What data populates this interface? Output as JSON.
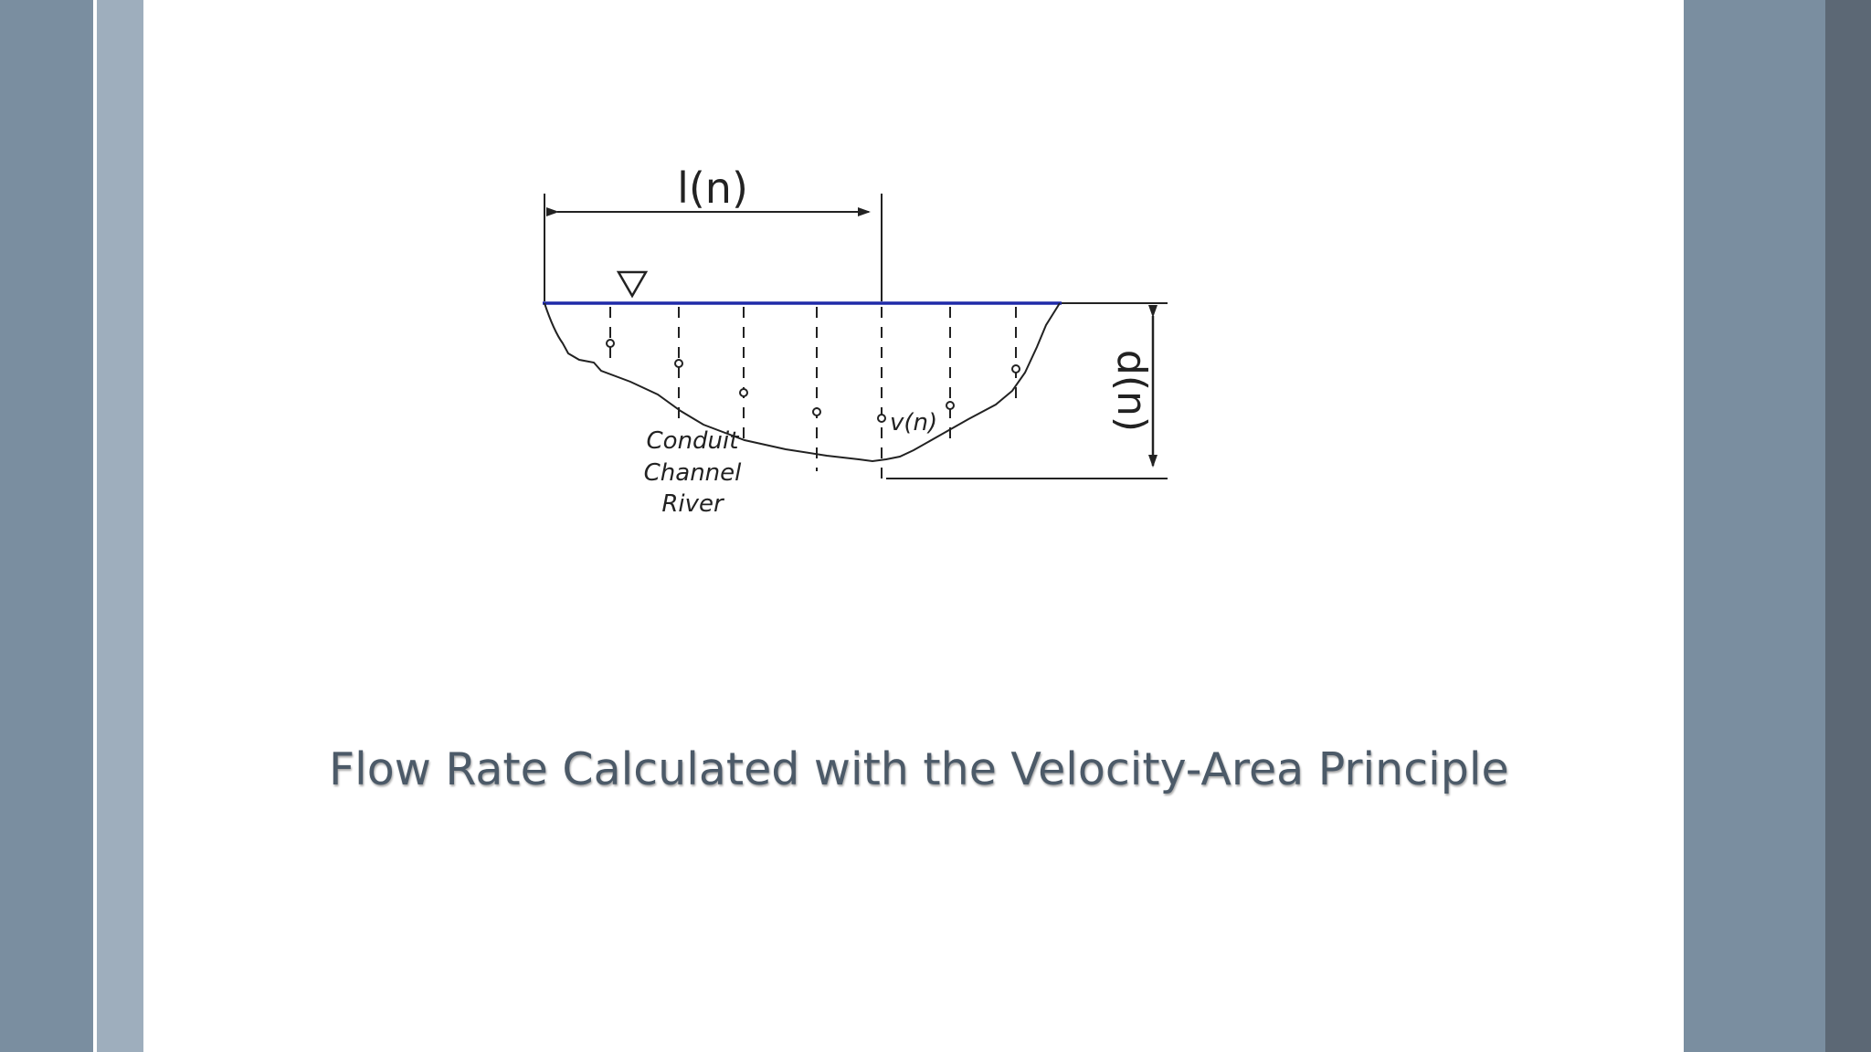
{
  "slide": {
    "caption": "Flow Rate Calculated with the Velocity-Area Principle"
  },
  "diagram": {
    "width_label": "l(n)",
    "depth_label": "d(n)",
    "velocity_label": "v(n)",
    "channel_labels": [
      "Conduit",
      "Channel",
      "River"
    ],
    "water_line_color": "#1f2aa8",
    "line_color": "#222222"
  }
}
